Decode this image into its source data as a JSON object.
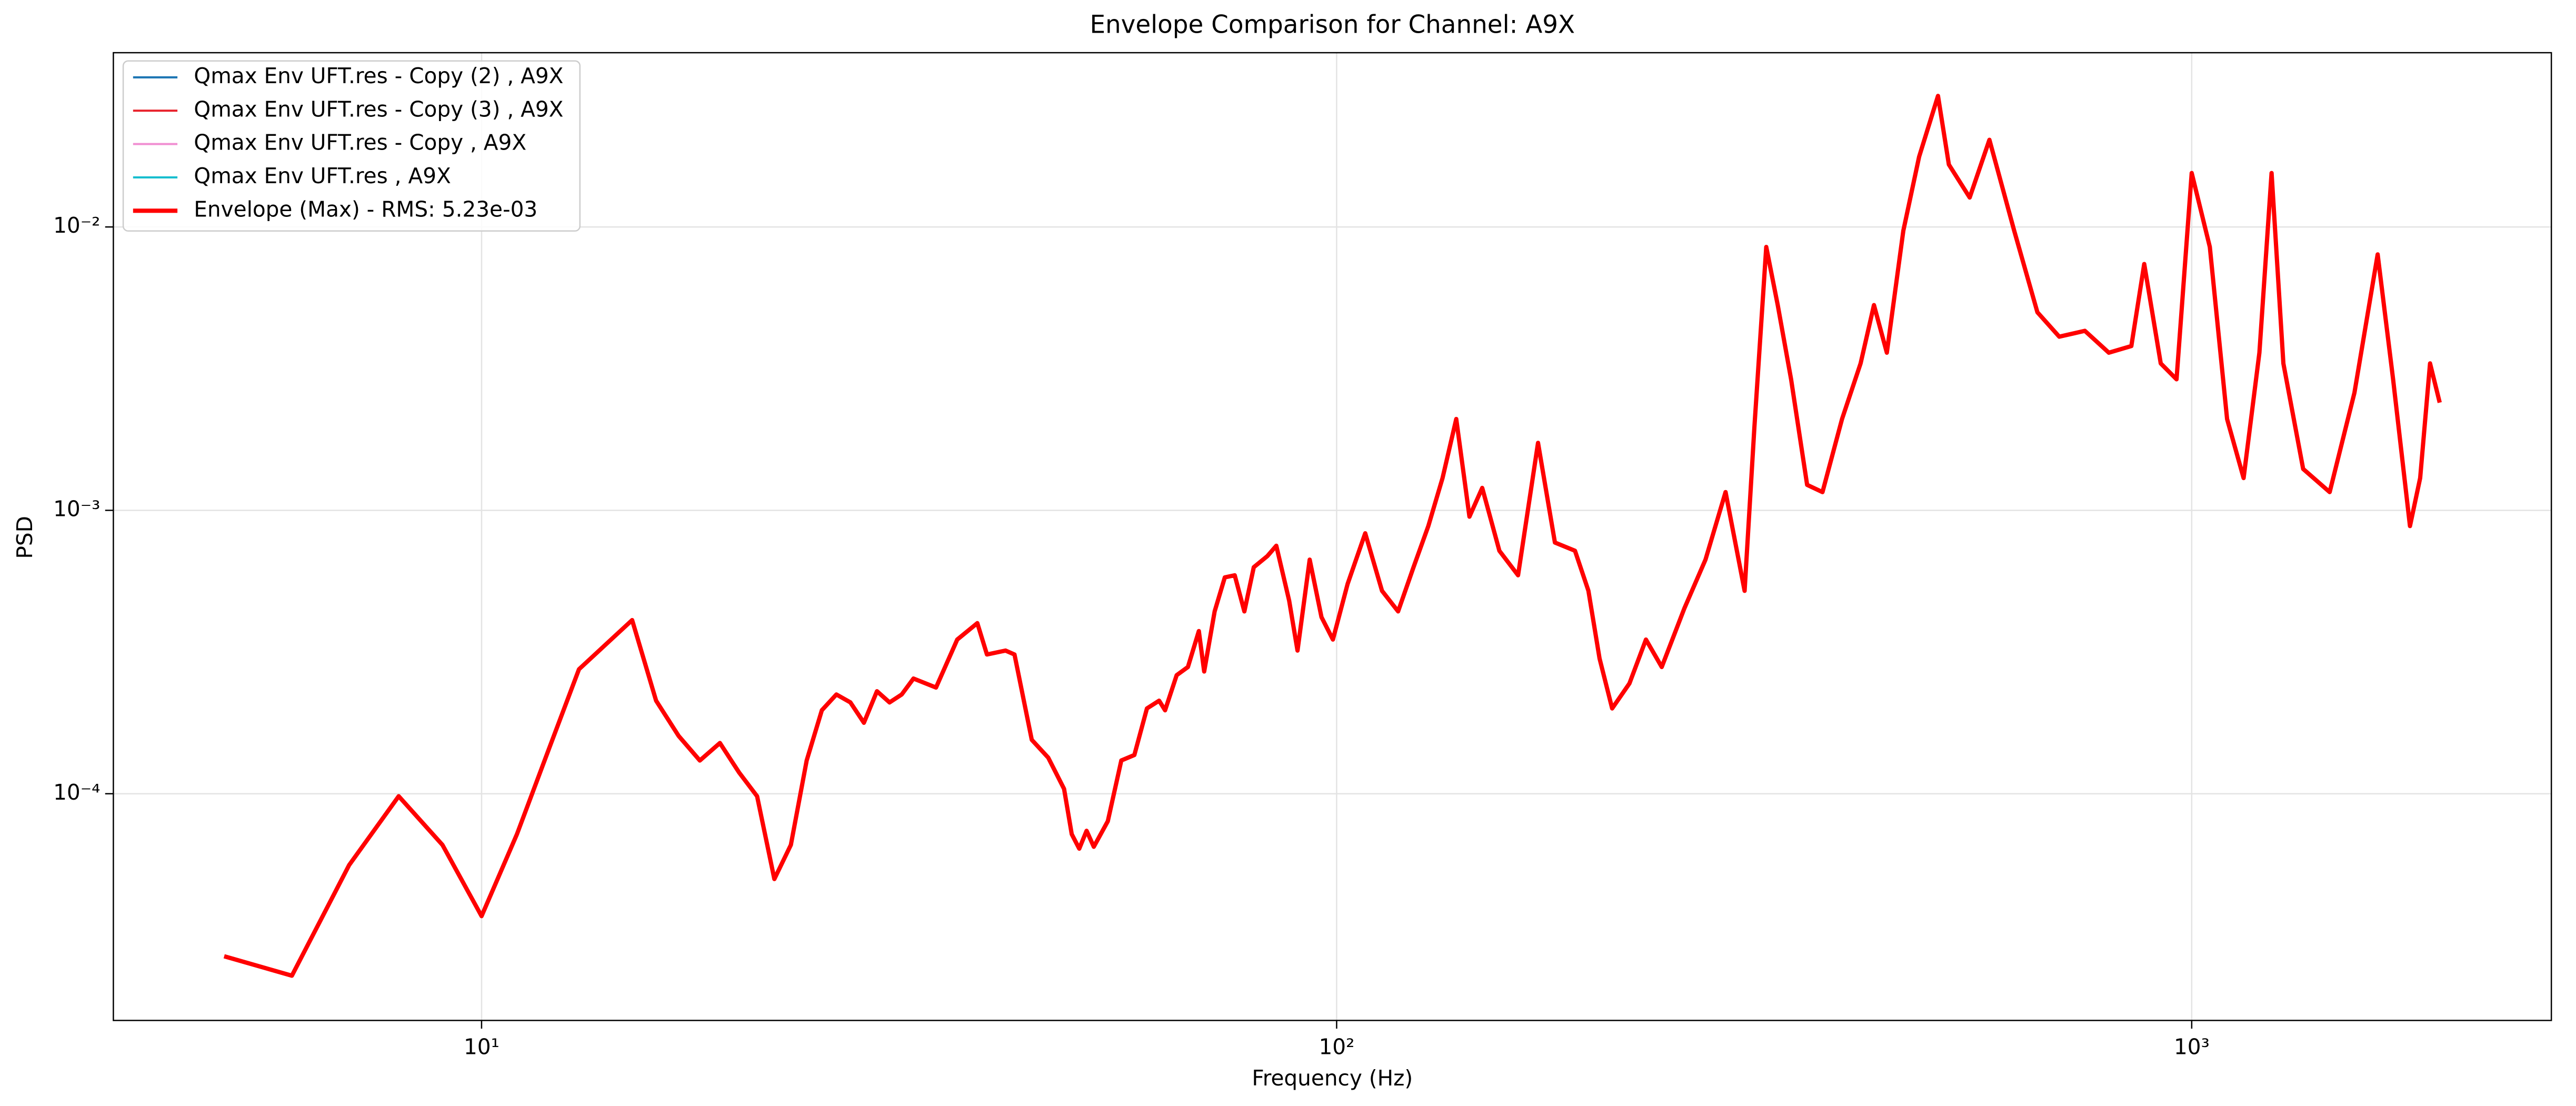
{
  "chart_data": {
    "type": "line",
    "title": "Envelope Comparison for Channel: A9X",
    "x_label": "Frequency (Hz)",
    "y_label": "PSD",
    "xscale": "log",
    "yscale": "log",
    "grid": true,
    "legend": "upper left",
    "xlim": [
      3.71,
      2634
    ],
    "ylim": [
      1.585e-05,
      0.0412
    ],
    "xticks": [
      {
        "value": 10,
        "label": "10¹"
      },
      {
        "value": 100,
        "label": "10²"
      },
      {
        "value": 1000,
        "label": "10³"
      }
    ],
    "yticks": [
      {
        "value": 0.0001,
        "label": "10⁻⁴"
      },
      {
        "value": 0.001,
        "label": "10⁻³"
      },
      {
        "value": 0.01,
        "label": "10⁻²"
      }
    ],
    "x": [
      5,
      6,
      7,
      8,
      9,
      10,
      11,
      12,
      13,
      15,
      16,
      17,
      18,
      19,
      20,
      21,
      22,
      23,
      24,
      25,
      26,
      27,
      28,
      29,
      30,
      31,
      32,
      34,
      36,
      38,
      39,
      41,
      42,
      44,
      46,
      48,
      49,
      50,
      51,
      52,
      54,
      56,
      58,
      60,
      62,
      63,
      65,
      67,
      69,
      70,
      72,
      74,
      76,
      78,
      80,
      83,
      85,
      88,
      90,
      93,
      96,
      99,
      103,
      108,
      113,
      118,
      123,
      128,
      133,
      138,
      143,
      148,
      155,
      163,
      172,
      180,
      190,
      197,
      203,
      210,
      220,
      230,
      240,
      255,
      270,
      285,
      300,
      308,
      318,
      328,
      340,
      355,
      370,
      390,
      410,
      425,
      440,
      460,
      480,
      505,
      520,
      550,
      580,
      620,
      660,
      700,
      750,
      800,
      850,
      880,
      920,
      960,
      1000,
      1050,
      1100,
      1150,
      1200,
      1240,
      1280,
      1350,
      1450,
      1550,
      1650,
      1720,
      1800,
      1850,
      1900,
      1950
    ],
    "series": [
      {
        "name": "Qmax Env UFT.res - Copy (2) , A9X",
        "color": "#1f77b4",
        "values": [
          null,
          null,
          null,
          null,
          null,
          null,
          null,
          null,
          null,
          null,
          null,
          null,
          null,
          null,
          null,
          null,
          null,
          null,
          null,
          null,
          null,
          null,
          null,
          null,
          null,
          null,
          null,
          null,
          null,
          null,
          null,
          null,
          null,
          null,
          null,
          null,
          null,
          null,
          null,
          null,
          null,
          null,
          null,
          null,
          null,
          null,
          null,
          null,
          null,
          null,
          null,
          null,
          null,
          null,
          null,
          null,
          null,
          null,
          null,
          null,
          null,
          null,
          null,
          null,
          null,
          null,
          null,
          null,
          null,
          null,
          null,
          null,
          null,
          null,
          null,
          null,
          null,
          null,
          null,
          null,
          null,
          null,
          null,
          null,
          null,
          null,
          null,
          null,
          null,
          null,
          null,
          null,
          null,
          null,
          null,
          null,
          null,
          null,
          null,
          null,
          null,
          null,
          null,
          null,
          null,
          null,
          null,
          null,
          null,
          null,
          null,
          null,
          null,
          null,
          null,
          null,
          null,
          null,
          null,
          null,
          null,
          null,
          null,
          null,
          null,
          null,
          null,
          null
        ]
      },
      {
        "name": "Qmax Env UFT.res - Copy (3) , A9X",
        "color": "#e8202a",
        "values": [
          null,
          null,
          null,
          null,
          null,
          null,
          null,
          null,
          null,
          null,
          null,
          null,
          null,
          null,
          null,
          null,
          null,
          null,
          null,
          null,
          null,
          null,
          null,
          null,
          null,
          null,
          null,
          null,
          null,
          null,
          null,
          null,
          null,
          null,
          null,
          null,
          null,
          null,
          null,
          null,
          null,
          null,
          null,
          null,
          null,
          null,
          null,
          null,
          null,
          null,
          null,
          null,
          null,
          null,
          null,
          null,
          null,
          null,
          null,
          null,
          null,
          null,
          null,
          null,
          null,
          null,
          null,
          null,
          null,
          null,
          null,
          null,
          null,
          null,
          null,
          null,
          null,
          null,
          null,
          null,
          null,
          null,
          null,
          null,
          null,
          null,
          null,
          null,
          null,
          null,
          null,
          null,
          null,
          null,
          null,
          null,
          null,
          null,
          null,
          null,
          null,
          null,
          null,
          null,
          null,
          null,
          null,
          null,
          null,
          null,
          null,
          null,
          null,
          null,
          null,
          null,
          null,
          null,
          null,
          null,
          null,
          null,
          null,
          null,
          null,
          null,
          null,
          null
        ]
      },
      {
        "name": "Qmax Env UFT.res - Copy , A9X",
        "color": "#f08fd2",
        "values": [
          null,
          null,
          null,
          null,
          null,
          null,
          null,
          null,
          null,
          null,
          null,
          null,
          null,
          null,
          null,
          null,
          null,
          null,
          null,
          null,
          null,
          null,
          null,
          null,
          null,
          null,
          null,
          null,
          null,
          null,
          null,
          null,
          null,
          null,
          null,
          null,
          null,
          null,
          null,
          null,
          null,
          null,
          null,
          null,
          null,
          null,
          null,
          null,
          null,
          null,
          null,
          null,
          null,
          null,
          null,
          null,
          null,
          null,
          null,
          null,
          null,
          null,
          null,
          null,
          null,
          null,
          null,
          null,
          null,
          null,
          null,
          null,
          null,
          null,
          null,
          null,
          null,
          null,
          null,
          null,
          null,
          null,
          null,
          null,
          null,
          null,
          null,
          null,
          null,
          null,
          null,
          null,
          null,
          null,
          null,
          null,
          null,
          null,
          null,
          null,
          null,
          null,
          null,
          null,
          null,
          null,
          null,
          null,
          null,
          null,
          null,
          null,
          null,
          null,
          null,
          null,
          null,
          null,
          null,
          null,
          null,
          null,
          null,
          null,
          null,
          null,
          null,
          null
        ]
      },
      {
        "name": "Qmax Env UFT.res , A9X",
        "color": "#17becf",
        "values": [
          null,
          null,
          null,
          null,
          null,
          null,
          null,
          null,
          null,
          null,
          null,
          null,
          null,
          null,
          null,
          null,
          null,
          null,
          null,
          null,
          null,
          null,
          null,
          null,
          null,
          null,
          null,
          null,
          null,
          null,
          null,
          null,
          null,
          null,
          null,
          null,
          null,
          null,
          null,
          null,
          null,
          null,
          null,
          null,
          null,
          null,
          null,
          null,
          null,
          null,
          null,
          null,
          null,
          null,
          null,
          null,
          null,
          null,
          null,
          null,
          null,
          null,
          null,
          null,
          null,
          null,
          null,
          null,
          null,
          null,
          null,
          null,
          null,
          null,
          null,
          null,
          null,
          null,
          null,
          null,
          null,
          null,
          null,
          null,
          null,
          null,
          null,
          null,
          null,
          null,
          null,
          null,
          null,
          null,
          null,
          null,
          null,
          null,
          null,
          null,
          null,
          null,
          null,
          null,
          null,
          null,
          null,
          null,
          null,
          null,
          null,
          null,
          null,
          null,
          null,
          null,
          null,
          null,
          null,
          null,
          null,
          null,
          null,
          null,
          null,
          null,
          null,
          null
        ]
      },
      {
        "name": "Envelope (Max) - RMS: 5.23e-03",
        "color": "#ff0000",
        "values": [
          2.67e-05,
          2.28e-05,
          5.6e-05,
          9.8e-05,
          6.6e-05,
          3.7e-05,
          7.2e-05,
          0.000145,
          0.000275,
          0.00041,
          0.000213,
          0.00016,
          0.000131,
          0.000151,
          0.000119,
          9.8e-05,
          5e-05,
          6.6e-05,
          0.000131,
          0.000197,
          0.000224,
          0.00021,
          0.000178,
          0.00023,
          0.00021,
          0.000224,
          0.000255,
          0.000237,
          0.00035,
          0.0004,
          0.00031,
          0.00032,
          0.00031,
          0.000155,
          0.000134,
          0.000104,
          7.2e-05,
          6.4e-05,
          7.4e-05,
          6.5e-05,
          8e-05,
          0.000131,
          0.000137,
          0.0002,
          0.000213,
          0.000197,
          0.000262,
          0.00028,
          0.000375,
          0.00027,
          0.00044,
          0.00058,
          0.00059,
          0.00044,
          0.00063,
          0.00069,
          0.00075,
          0.00048,
          0.00032,
          0.00067,
          0.00042,
          0.00035,
          0.00055,
          0.00083,
          0.00052,
          0.00044,
          0.00063,
          0.00088,
          0.0013,
          0.0021,
          0.00095,
          0.0012,
          0.00072,
          0.00059,
          0.00173,
          0.00077,
          0.00072,
          0.00052,
          0.0003,
          0.0002,
          0.000245,
          0.00035,
          0.00028,
          0.00045,
          0.00067,
          0.00116,
          0.00052,
          0.00196,
          0.0085,
          0.0053,
          0.0029,
          0.00123,
          0.00116,
          0.0021,
          0.0033,
          0.0053,
          0.0036,
          0.0097,
          0.0177,
          0.029,
          0.0166,
          0.0127,
          0.0203,
          0.0097,
          0.005,
          0.0041,
          0.0043,
          0.0036,
          0.0038,
          0.0074,
          0.0033,
          0.0029,
          0.0155,
          0.0085,
          0.0021,
          0.0013,
          0.0036,
          0.0155,
          0.0033,
          0.0014,
          0.00116,
          0.0026,
          0.008,
          0.0029,
          0.00088,
          0.0013,
          0.0033,
          0.0024
        ]
      }
    ]
  }
}
